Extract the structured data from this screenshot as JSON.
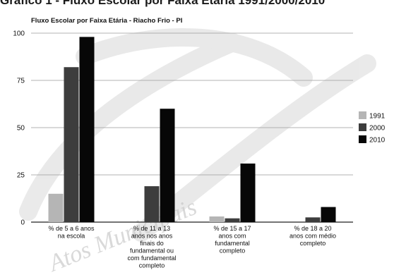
{
  "page": {
    "heading": "Gráfico 1 - Fluxo Escolar por Faixa Etária 1991/2000/2010"
  },
  "watermark": {
    "text": "Atos Municipais"
  },
  "chart_data": {
    "type": "bar",
    "title": "Fluxo Escolar por Faixa Etária - Riacho Frio - PI",
    "categories": [
      [
        "% de 5 a 6 anos",
        "na escola"
      ],
      [
        "% de 11 a 13",
        "anos nos anos",
        "finais do",
        "fundamental ou",
        "com fundamental",
        "completo"
      ],
      [
        "% de 15 a 17",
        "anos com",
        "fundamental",
        "completo"
      ],
      [
        "% de 18 a 20",
        "anos com médio",
        "completo"
      ]
    ],
    "series": [
      {
        "name": "1991",
        "color": "#b5b5b5",
        "values": [
          15,
          0,
          3,
          0
        ]
      },
      {
        "name": "2000",
        "color": "#3d3d3d",
        "values": [
          82,
          19,
          2,
          2.5
        ]
      },
      {
        "name": "2010",
        "color": "#070707",
        "values": [
          98,
          60,
          31,
          8
        ]
      }
    ],
    "yticks": [
      0,
      25,
      50,
      75,
      100
    ],
    "ylim": [
      0,
      100
    ],
    "grid": true,
    "legend": "right"
  }
}
